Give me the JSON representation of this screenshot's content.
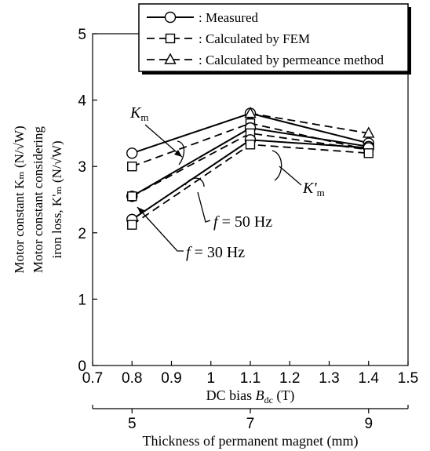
{
  "chart_data": {
    "type": "line",
    "x_axis": {
      "label_prefix": "DC bias ",
      "label_symbol": "B",
      "label_sub": "dc",
      "label_suffix": " (T)",
      "range": [
        0.7,
        1.5
      ],
      "ticks": [
        0.7,
        0.8,
        0.9,
        1.0,
        1.1,
        1.2,
        1.3,
        1.4,
        1.5
      ],
      "tick_labels": [
        "0.7",
        "0.8",
        "0.9",
        "1",
        "1.1",
        "1.2",
        "1.3",
        "1.4",
        "1.5"
      ]
    },
    "secondary_x_axis": {
      "label": "Thickness of permanent magnet (mm)",
      "ticks": [
        {
          "x": 0.8,
          "label": "5"
        },
        {
          "x": 1.1,
          "label": "7"
        },
        {
          "x": 1.4,
          "label": "9"
        }
      ]
    },
    "y_axis": {
      "range": [
        0,
        5
      ],
      "ticks": [
        0,
        1,
        2,
        3,
        4,
        5
      ],
      "tick_labels": [
        "0",
        "1",
        "2",
        "3",
        "4",
        "5"
      ],
      "label_lines": [
        "Motor constant Kₘ (N/√W)",
        "Motor constant considering",
        "iron loss, K'ₘ (N/√W)"
      ]
    },
    "legend": {
      "placement": "top-right",
      "items": [
        {
          "marker": "circle",
          "line": "solid",
          "label": ": Measured"
        },
        {
          "marker": "square",
          "line": "dashed",
          "label": ": Calculated by FEM"
        },
        {
          "marker": "triangle",
          "line": "dashed",
          "label": ": Calculated by permeance method"
        }
      ]
    },
    "series": [
      {
        "group": "Km",
        "method": "measured",
        "marker": "circle",
        "line": "solid",
        "x": [
          0.8,
          1.1,
          1.4
        ],
        "y": [
          3.2,
          3.8,
          3.35
        ]
      },
      {
        "group": "Km",
        "method": "fem",
        "marker": "square",
        "line": "dashed",
        "x": [
          0.8,
          1.1,
          1.4
        ],
        "y": [
          3.0,
          3.65,
          3.25
        ]
      },
      {
        "group": "Km",
        "method": "permeance",
        "marker": "triangle",
        "line": "dashed",
        "x": [
          1.1,
          1.4
        ],
        "y": [
          3.8,
          3.5
        ]
      },
      {
        "group": "K'm f=50Hz",
        "method": "measured",
        "marker": "circle",
        "line": "solid",
        "x": [
          0.8,
          1.1,
          1.4
        ],
        "y": [
          2.55,
          3.58,
          3.3
        ]
      },
      {
        "group": "K'm f=50Hz",
        "method": "fem",
        "marker": "square",
        "line": "dashed",
        "x": [
          0.8,
          1.1,
          1.4
        ],
        "y": [
          2.55,
          3.5,
          3.25
        ]
      },
      {
        "group": "K'm f=30Hz",
        "method": "measured",
        "marker": "circle",
        "line": "solid",
        "x": [
          0.8,
          1.1,
          1.4
        ],
        "y": [
          2.2,
          3.4,
          3.28
        ]
      },
      {
        "group": "K'm f=30Hz",
        "method": "fem",
        "marker": "square",
        "line": "dashed",
        "x": [
          0.8,
          1.1,
          1.4
        ],
        "y": [
          2.12,
          3.33,
          3.2
        ]
      }
    ],
    "annotations": [
      {
        "text_base": "K",
        "text_sub": "m"
      },
      {
        "text_base": "K'",
        "text_sub": "m"
      },
      {
        "text_italic": "f",
        "text": " = 50 Hz"
      },
      {
        "text_italic": "f",
        "text": " = 30 Hz"
      }
    ]
  }
}
